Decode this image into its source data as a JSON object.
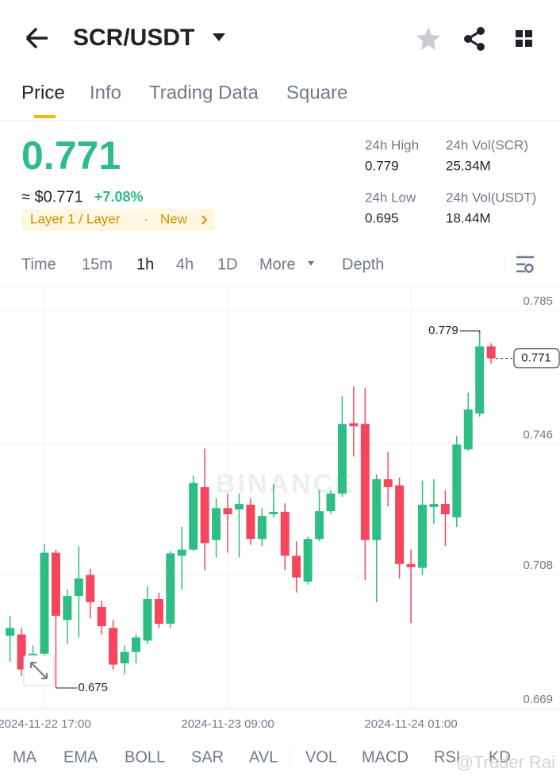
{
  "header": {
    "title": "SCR/USDT"
  },
  "tabs": [
    "Price",
    "Info",
    "Trading Data",
    "Square"
  ],
  "price": {
    "last": "0.771",
    "usd": "≈ $0.771",
    "change": "+7.08%",
    "tag": "Layer 1 / Layer",
    "badge": "New"
  },
  "stats": [
    {
      "label": "24h High",
      "value": "0.779"
    },
    {
      "label": "24h Vol(SCR)",
      "value": "25.34M"
    },
    {
      "label": "24h Low",
      "value": "0.695"
    },
    {
      "label": "24h Vol(USDT)",
      "value": "18.44M"
    }
  ],
  "intervals": [
    "Time",
    "15m",
    "1h",
    "4h",
    "1D",
    "More",
    "Depth"
  ],
  "indicators": [
    "MA",
    "EMA",
    "BOLL",
    "SAR",
    "AVL",
    "VOL",
    "MACD",
    "RSI",
    "KD"
  ],
  "watermarks": [
    "BINANCE",
    "@Trader Rai"
  ],
  "chart_data": {
    "type": "candlestick",
    "up_color": "#2ebd85",
    "down_color": "#f6465d",
    "categories": [
      null,
      null,
      null,
      "2024-11-22 17:00",
      null,
      null,
      null,
      null,
      null,
      null,
      null,
      null,
      null,
      null,
      null,
      null,
      null,
      null,
      null,
      "2024-11-23 09:00",
      null,
      null,
      null,
      null,
      null,
      null,
      null,
      null,
      null,
      null,
      null,
      null,
      null,
      null,
      null,
      "2024-11-24 01:00",
      null,
      null,
      null,
      null,
      null,
      null,
      null
    ],
    "open": [
      0.6902,
      0.6906,
      0.6837,
      0.685,
      0.7144,
      0.6948,
      0.7018,
      0.7079,
      0.6986,
      0.6925,
      0.6822,
      0.6855,
      0.6888,
      0.7009,
      0.6937,
      0.7135,
      0.7153,
      0.7335,
      0.7181,
      0.7274,
      0.727,
      0.7284,
      0.7184,
      0.7256,
      0.7263,
      0.7135,
      0.706,
      0.7184,
      0.7265,
      0.7316,
      0.7521,
      0.7519,
      0.7181,
      0.7358,
      0.734,
      0.7111,
      0.71,
      0.7277,
      0.7286,
      0.7247,
      0.7445,
      0.7549,
      0.7745
    ],
    "high": [
      0.696,
      0.6925,
      0.6874,
      0.717,
      0.7153,
      0.7037,
      0.7163,
      0.7097,
      0.7004,
      0.6948,
      0.6874,
      0.6906,
      0.7046,
      0.7028,
      0.7149,
      0.7219,
      0.7368,
      0.7447,
      0.7302,
      0.7316,
      0.7316,
      0.7302,
      0.7274,
      0.7344,
      0.7288,
      0.7177,
      0.7191,
      0.7326,
      0.7326,
      0.7601,
      0.7629,
      0.7624,
      0.7372,
      0.7438,
      0.7363,
      0.7153,
      0.7354,
      0.7358,
      0.7326,
      0.7484,
      0.761,
      0.779,
      0.7754
    ],
    "low": [
      0.6827,
      0.6785,
      0.6781,
      0.6827,
      0.675,
      0.6878,
      0.6897,
      0.6953,
      0.6906,
      0.6804,
      0.679,
      0.6822,
      0.6878,
      0.6925,
      0.6925,
      0.7037,
      0.7149,
      0.7093,
      0.713,
      0.7144,
      0.713,
      0.7167,
      0.7163,
      0.7247,
      0.7093,
      0.7028,
      0.7051,
      0.7177,
      0.7258,
      0.7307,
      0.7424,
      0.7065,
      0.7,
      0.7279,
      0.7069,
      0.6939,
      0.7079,
      0.7228,
      0.7163,
      0.7219,
      0.744,
      0.754,
      0.7694
    ],
    "close": [
      0.6925,
      0.6804,
      0.685,
      0.7144,
      0.696,
      0.7018,
      0.7069,
      0.7,
      0.693,
      0.6818,
      0.6855,
      0.6897,
      0.7009,
      0.6937,
      0.7142,
      0.7153,
      0.7347,
      0.7172,
      0.7274,
      0.7256,
      0.7286,
      0.7184,
      0.7251,
      0.7263,
      0.7135,
      0.7072,
      0.7184,
      0.7265,
      0.7316,
      0.7519,
      0.7512,
      0.7181,
      0.7358,
      0.7335,
      0.7111,
      0.7102,
      0.7284,
      0.7286,
      0.7256,
      0.7459,
      0.7561,
      0.7745,
      0.771
    ],
    "ylim": [
      0.669,
      0.785
    ],
    "yticks": [
      0.669,
      0.708,
      0.746,
      0.785
    ],
    "annotations": {
      "high": 0.779,
      "low": 0.675,
      "last": 0.771
    }
  }
}
